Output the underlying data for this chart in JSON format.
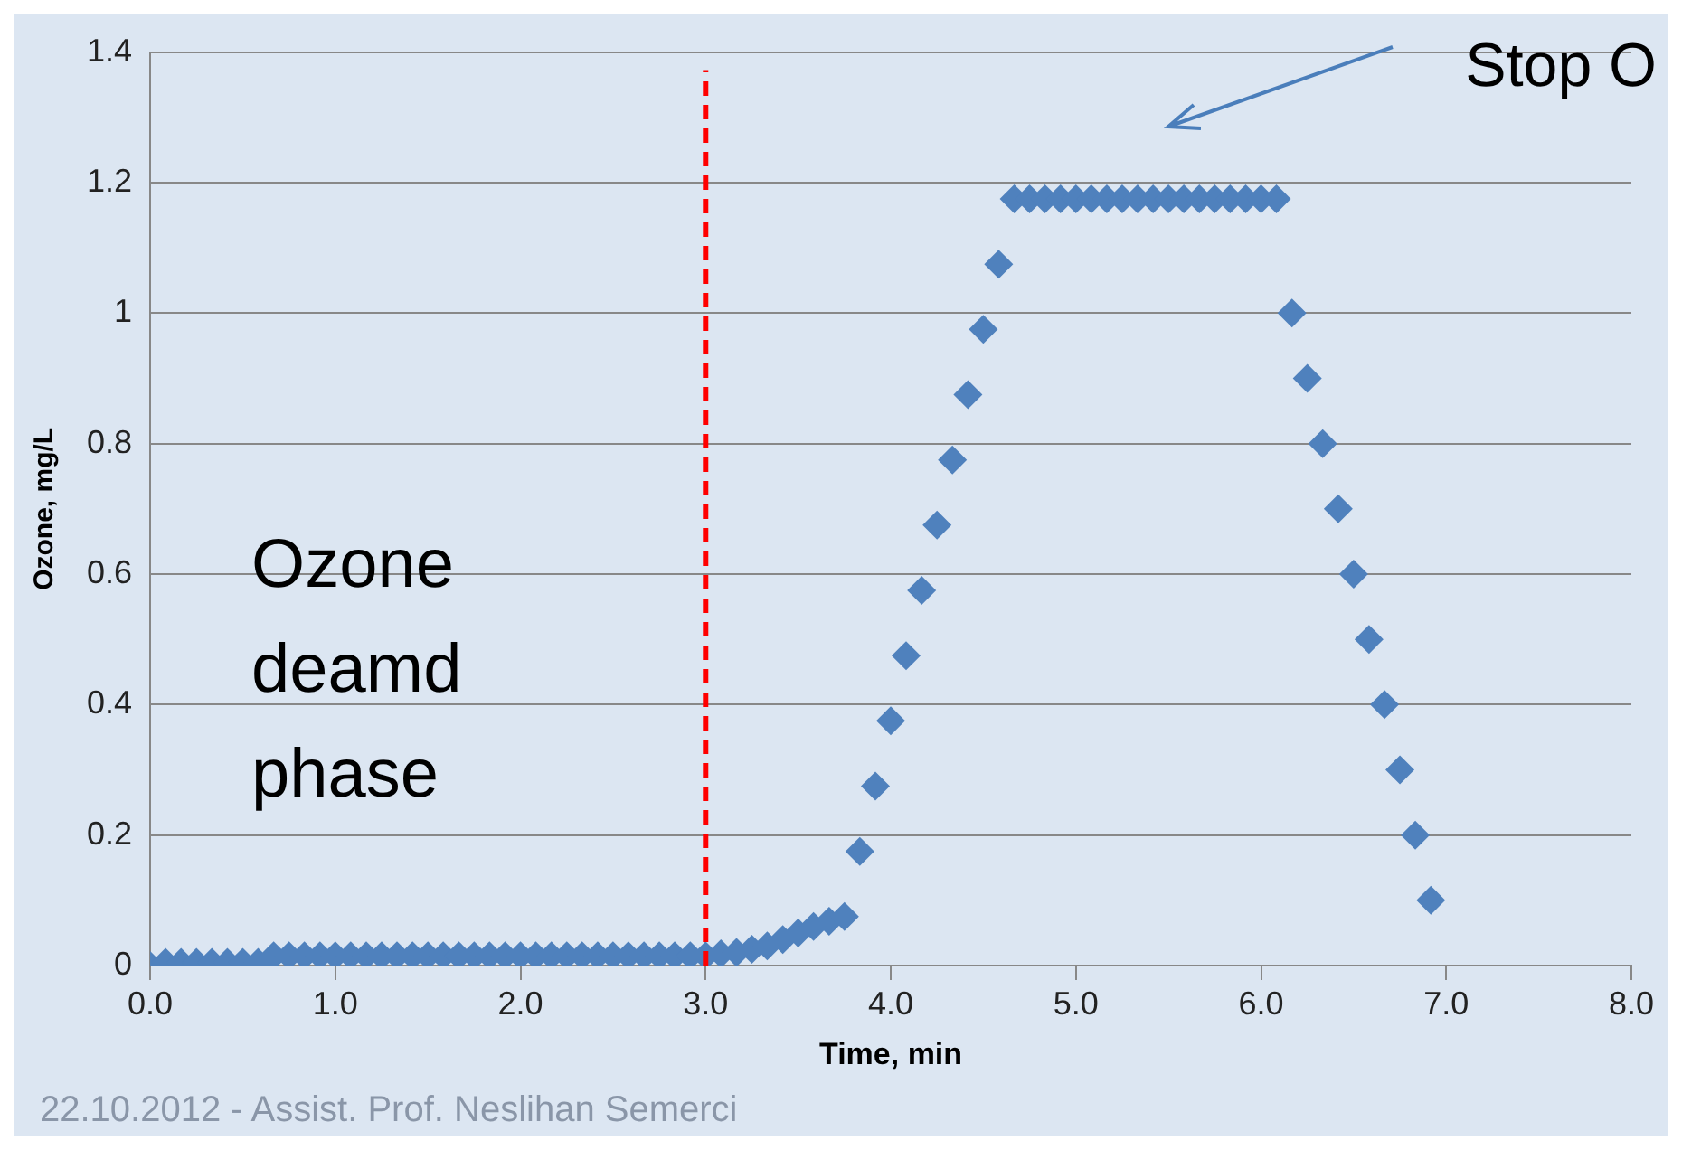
{
  "chart_data": {
    "type": "scatter",
    "xlabel": "Time, min",
    "ylabel": "Ozone, mg/L",
    "x": [
      0,
      0.083,
      0.167,
      0.25,
      0.333,
      0.417,
      0.5,
      0.583,
      0.667,
      0.75,
      0.833,
      0.917,
      1,
      1.083,
      1.167,
      1.25,
      1.333,
      1.417,
      1.5,
      1.583,
      1.667,
      1.75,
      1.833,
      1.917,
      2,
      2.083,
      2.167,
      2.25,
      2.333,
      2.417,
      2.5,
      2.583,
      2.667,
      2.75,
      2.833,
      2.917,
      3,
      3.083,
      3.167,
      3.25,
      3.333,
      3.417,
      3.5,
      3.583,
      3.667,
      3.75,
      3.833,
      3.917,
      4,
      4.083,
      4.167,
      4.25,
      4.333,
      4.417,
      4.5,
      4.583,
      4.667,
      4.75,
      4.833,
      4.917,
      5,
      5.083,
      5.167,
      5.25,
      5.333,
      5.417,
      5.5,
      5.583,
      5.667,
      5.75,
      5.833,
      5.917,
      6,
      6.083,
      6.167,
      6.25,
      6.333,
      6.417,
      6.5,
      6.583,
      6.667,
      6.75,
      6.833,
      6.917
    ],
    "series": [
      {
        "color": "#4f81bd",
        "values": [
          0,
          0.005,
          0.005,
          0.005,
          0.005,
          0.005,
          0.005,
          0.005,
          0.015,
          0.015,
          0.015,
          0.015,
          0.015,
          0.015,
          0.015,
          0.015,
          0.015,
          0.015,
          0.015,
          0.015,
          0.015,
          0.015,
          0.015,
          0.015,
          0.015,
          0.015,
          0.015,
          0.015,
          0.015,
          0.015,
          0.015,
          0.015,
          0.015,
          0.015,
          0.015,
          0.015,
          0.015,
          0.018,
          0.02,
          0.025,
          0.03,
          0.04,
          0.05,
          0.06,
          0.068,
          0.075,
          0.175,
          0.275,
          0.375,
          0.475,
          0.575,
          0.675,
          0.775,
          0.875,
          0.975,
          1.075,
          1.175,
          1.175,
          1.175,
          1.175,
          1.175,
          1.175,
          1.175,
          1.175,
          1.175,
          1.175,
          1.175,
          1.175,
          1.175,
          1.175,
          1.175,
          1.175,
          1.175,
          1.175,
          1,
          0.9,
          0.8,
          0.7,
          0.6,
          0.5,
          0.4,
          0.3,
          0.2,
          0.1
        ]
      }
    ],
    "xlim": [
      0,
      8
    ],
    "xticks": [
      {
        "value": 0,
        "label": "0.0"
      },
      {
        "value": 1,
        "label": "1.0"
      },
      {
        "value": 2,
        "label": "2.0"
      },
      {
        "value": 3,
        "label": "3.0"
      },
      {
        "value": 4,
        "label": "4.0"
      },
      {
        "value": 5,
        "label": "5.0"
      },
      {
        "value": 6,
        "label": "6.0"
      },
      {
        "value": 7,
        "label": "7.0"
      },
      {
        "value": 8,
        "label": "8.0"
      }
    ],
    "ylim": [
      0,
      1.4
    ],
    "yticks": [
      0,
      0.2,
      0.4,
      0.6,
      0.8,
      1,
      1.2,
      1.4
    ],
    "grid": "y",
    "legend": false,
    "marker": "diamond",
    "ref_lines": [
      {
        "axis": "x",
        "value": 3,
        "color": "#ff0000",
        "line_style": "dashed"
      }
    ],
    "annotations": [
      "Stop O",
      "Ozone deamd phase",
      "22.10.2012 - Assist. Prof. Neslihan Semerci"
    ]
  }
}
